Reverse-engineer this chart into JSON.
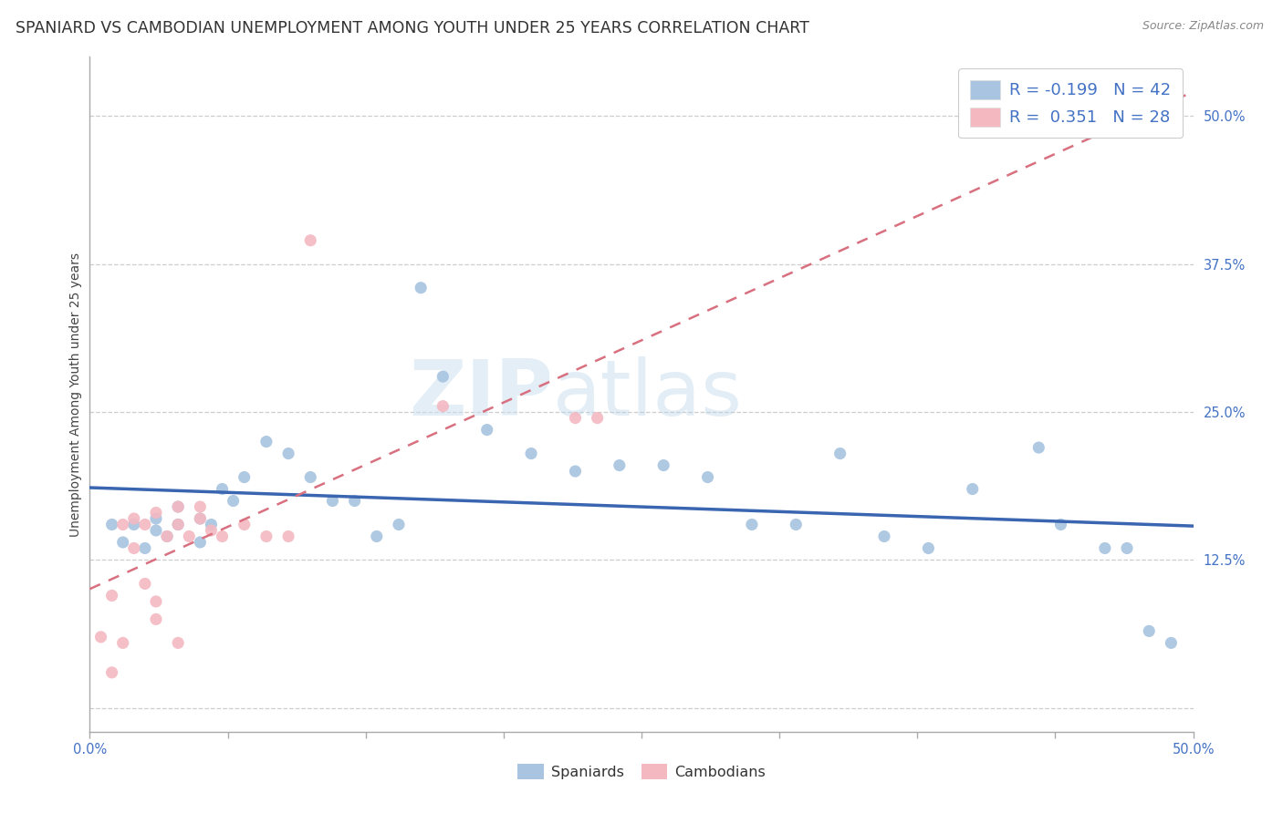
{
  "title": "SPANIARD VS CAMBODIAN UNEMPLOYMENT AMONG YOUTH UNDER 25 YEARS CORRELATION CHART",
  "source": "Source: ZipAtlas.com",
  "ylabel": "Unemployment Among Youth under 25 years",
  "xlim": [
    0.0,
    0.5
  ],
  "ylim": [
    -0.02,
    0.55
  ],
  "yticks_right": [
    0.0,
    0.125,
    0.25,
    0.375,
    0.5
  ],
  "ytick_labels_right": [
    "",
    "12.5%",
    "25.0%",
    "37.5%",
    "50.0%"
  ],
  "background_color": "#ffffff",
  "plot_bg_color": "#ffffff",
  "grid_color": "#c8c8c8",
  "spaniards_color": "#a8c4e0",
  "cambodians_color": "#f4b8c1",
  "spaniards_line_color": "#3a65b0",
  "cambodians_line_color": "#d97080",
  "r_spaniards": -0.199,
  "n_spaniards": 42,
  "r_cambodians": 0.351,
  "n_cambodians": 28,
  "spaniards_x": [
    0.01,
    0.015,
    0.02,
    0.025,
    0.03,
    0.03,
    0.035,
    0.04,
    0.04,
    0.05,
    0.05,
    0.055,
    0.06,
    0.065,
    0.07,
    0.08,
    0.09,
    0.1,
    0.11,
    0.12,
    0.13,
    0.14,
    0.15,
    0.16,
    0.18,
    0.2,
    0.22,
    0.24,
    0.26,
    0.28,
    0.3,
    0.32,
    0.34,
    0.36,
    0.38,
    0.4,
    0.43,
    0.44,
    0.46,
    0.47,
    0.48,
    0.49
  ],
  "spaniards_y": [
    0.155,
    0.14,
    0.155,
    0.135,
    0.16,
    0.15,
    0.145,
    0.17,
    0.155,
    0.16,
    0.14,
    0.155,
    0.185,
    0.175,
    0.195,
    0.225,
    0.215,
    0.195,
    0.175,
    0.175,
    0.145,
    0.155,
    0.355,
    0.28,
    0.235,
    0.215,
    0.2,
    0.205,
    0.205,
    0.195,
    0.155,
    0.155,
    0.215,
    0.145,
    0.135,
    0.185,
    0.22,
    0.155,
    0.135,
    0.135,
    0.065,
    0.055
  ],
  "cambodians_x": [
    0.005,
    0.01,
    0.01,
    0.015,
    0.02,
    0.02,
    0.025,
    0.03,
    0.03,
    0.035,
    0.04,
    0.04,
    0.045,
    0.05,
    0.05,
    0.055,
    0.06,
    0.07,
    0.08,
    0.09,
    0.1,
    0.16,
    0.22,
    0.23,
    0.015,
    0.025,
    0.03,
    0.04
  ],
  "cambodians_y": [
    0.06,
    0.095,
    0.03,
    0.155,
    0.135,
    0.16,
    0.155,
    0.165,
    0.09,
    0.145,
    0.155,
    0.17,
    0.145,
    0.16,
    0.17,
    0.15,
    0.145,
    0.155,
    0.145,
    0.145,
    0.395,
    0.255,
    0.245,
    0.245,
    0.055,
    0.105,
    0.075,
    0.055
  ],
  "watermark_zip": "ZIP",
  "watermark_atlas": "atlas",
  "title_fontsize": 12.5,
  "label_fontsize": 10,
  "tick_fontsize": 10.5
}
